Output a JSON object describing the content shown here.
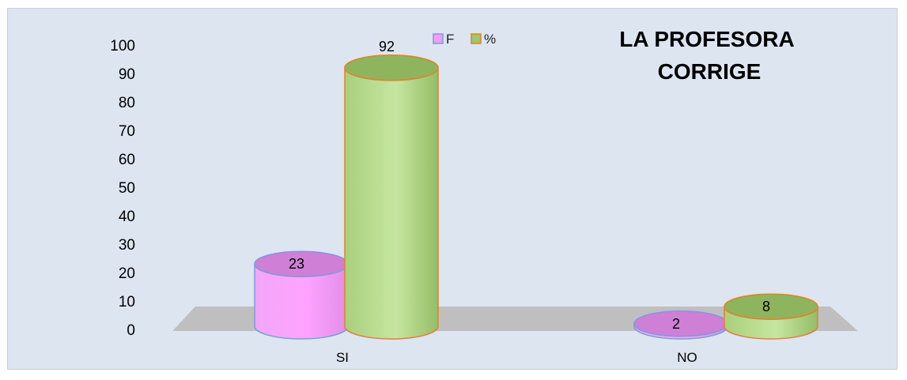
{
  "chart_data": {
    "type": "bar",
    "title_lines": [
      "LA PROFESORA",
      "CORRIGE"
    ],
    "categories": [
      "SI",
      "NO"
    ],
    "series": [
      {
        "name": "F",
        "values": [
          23,
          2
        ],
        "color": "#f59df5",
        "top_color": "#cf7fd6",
        "stroke": "#7d9bd9"
      },
      {
        "name": "%",
        "values": [
          92,
          8
        ],
        "color": "#b9dc8f",
        "top_color": "#8fb45e",
        "stroke": "#e0822a"
      }
    ],
    "y_ticks": [
      0,
      10,
      20,
      30,
      40,
      50,
      60,
      70,
      80,
      90,
      100
    ],
    "ylim": [
      0,
      100
    ],
    "legend_position": "top",
    "grid": false
  },
  "colors": {
    "background": "#dde5f1",
    "floor": "#bfbfbf"
  }
}
